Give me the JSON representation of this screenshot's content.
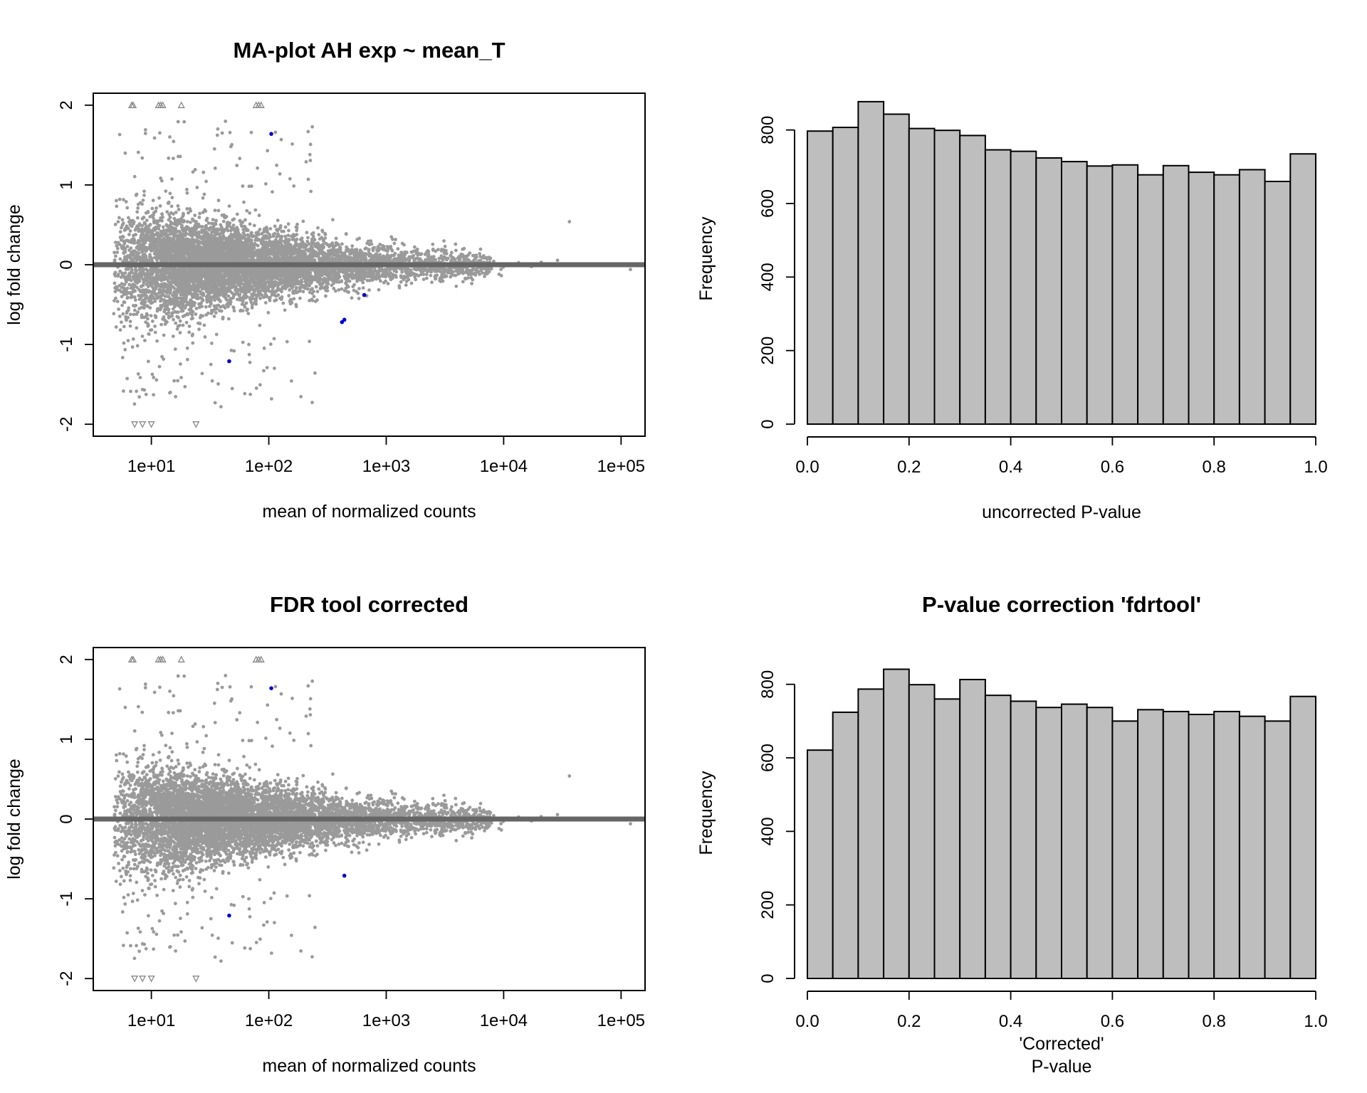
{
  "chart_data": [
    {
      "type": "scatter",
      "panel": "top-left",
      "title": "MA-plot AH exp ~ mean_T",
      "xlabel": "mean of normalized counts",
      "ylabel": "log fold change",
      "x_scale": "log10",
      "xlim": [
        3.2,
        160000
      ],
      "ylim": [
        -2.15,
        2.15
      ],
      "x_ticks": [
        "1e+01",
        "1e+02",
        "1e+03",
        "1e+04",
        "1e+05"
      ],
      "y_ticks": [
        "-2",
        "-1",
        "0",
        "1",
        "2"
      ],
      "zero_line": 0,
      "colors": {
        "points": "#9a9a9a",
        "significant": "#0000cc",
        "zero_line": "#666666",
        "out_of_range": "#888888"
      },
      "highlighted_points": [
        {
          "x": 105,
          "y": 1.64
        },
        {
          "x": 420,
          "y": -0.72
        },
        {
          "x": 440,
          "y": -0.69
        },
        {
          "x": 46,
          "y": -1.21
        },
        {
          "x": 650,
          "y": -0.38
        }
      ],
      "out_of_range_up": [
        6.8,
        7.0,
        11.5,
        12.0,
        12.5,
        18.0,
        78,
        82,
        86
      ],
      "out_of_range_down": [
        7.2,
        8.4,
        10.0,
        24.0
      ]
    },
    {
      "type": "bar",
      "panel": "top-right",
      "title": "",
      "xlabel": "uncorrected P-value",
      "ylabel": "Frequency",
      "x_ticks": [
        "0.0",
        "0.2",
        "0.4",
        "0.6",
        "0.8",
        "1.0"
      ],
      "y_ticks": [
        "0",
        "200",
        "400",
        "600",
        "800"
      ],
      "xlim": [
        0,
        1
      ],
      "ylim": [
        0,
        900
      ],
      "bin_width": 0.05,
      "values": [
        797,
        807,
        877,
        843,
        804,
        799,
        785,
        746,
        742,
        724,
        714,
        702,
        705,
        678,
        703,
        685,
        678,
        692,
        660,
        735
      ],
      "bar_color": "#bebebe"
    },
    {
      "type": "scatter",
      "panel": "bottom-left",
      "title": "FDR tool corrected",
      "xlabel": "mean of normalized counts",
      "ylabel": "log fold change",
      "x_scale": "log10",
      "xlim": [
        3.2,
        160000
      ],
      "ylim": [
        -2.15,
        2.15
      ],
      "x_ticks": [
        "1e+01",
        "1e+02",
        "1e+03",
        "1e+04",
        "1e+05"
      ],
      "y_ticks": [
        "-2",
        "-1",
        "0",
        "1",
        "2"
      ],
      "zero_line": 0,
      "colors": {
        "points": "#9a9a9a",
        "significant": "#0000cc",
        "zero_line": "#666666",
        "out_of_range": "#888888"
      },
      "highlighted_points": [
        {
          "x": 105,
          "y": 1.64
        },
        {
          "x": 440,
          "y": -0.71
        },
        {
          "x": 46,
          "y": -1.21
        }
      ],
      "out_of_range_up": [
        6.8,
        7.0,
        11.5,
        12.0,
        12.5,
        18.0,
        78,
        82,
        86
      ],
      "out_of_range_down": [
        7.2,
        8.4,
        10.0,
        24.0
      ]
    },
    {
      "type": "bar",
      "panel": "bottom-right",
      "title": "P-value correction 'fdrtool'",
      "xlabel": "'Corrected'\nP-value",
      "xlabel_lines": [
        "'Corrected'",
        "P-value"
      ],
      "ylabel": "Frequency",
      "x_ticks": [
        "0.0",
        "0.2",
        "0.4",
        "0.6",
        "0.8",
        "1.0"
      ],
      "y_ticks": [
        "0",
        "200",
        "400",
        "600",
        "800"
      ],
      "xlim": [
        0,
        1
      ],
      "ylim": [
        0,
        900
      ],
      "bin_width": 0.05,
      "values": [
        621,
        724,
        787,
        841,
        799,
        760,
        813,
        770,
        754,
        737,
        746,
        737,
        700,
        731,
        726,
        718,
        726,
        713,
        700,
        767
      ],
      "bar_color": "#bebebe"
    }
  ]
}
